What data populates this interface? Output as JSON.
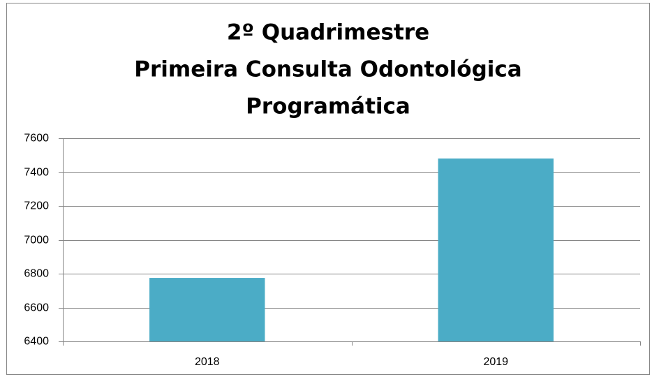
{
  "chart_data": {
    "type": "bar",
    "title": [
      "2º Quadrimestre",
      "Primeira Consulta Odontológica",
      "Programática"
    ],
    "categories": [
      "2018",
      "2019"
    ],
    "values": [
      6775,
      7480
    ],
    "color": "#4bacc6",
    "ylim": [
      6400,
      7600
    ],
    "yticks": [
      6400,
      6600,
      6800,
      7000,
      7200,
      7400,
      7600
    ],
    "grid": true
  }
}
